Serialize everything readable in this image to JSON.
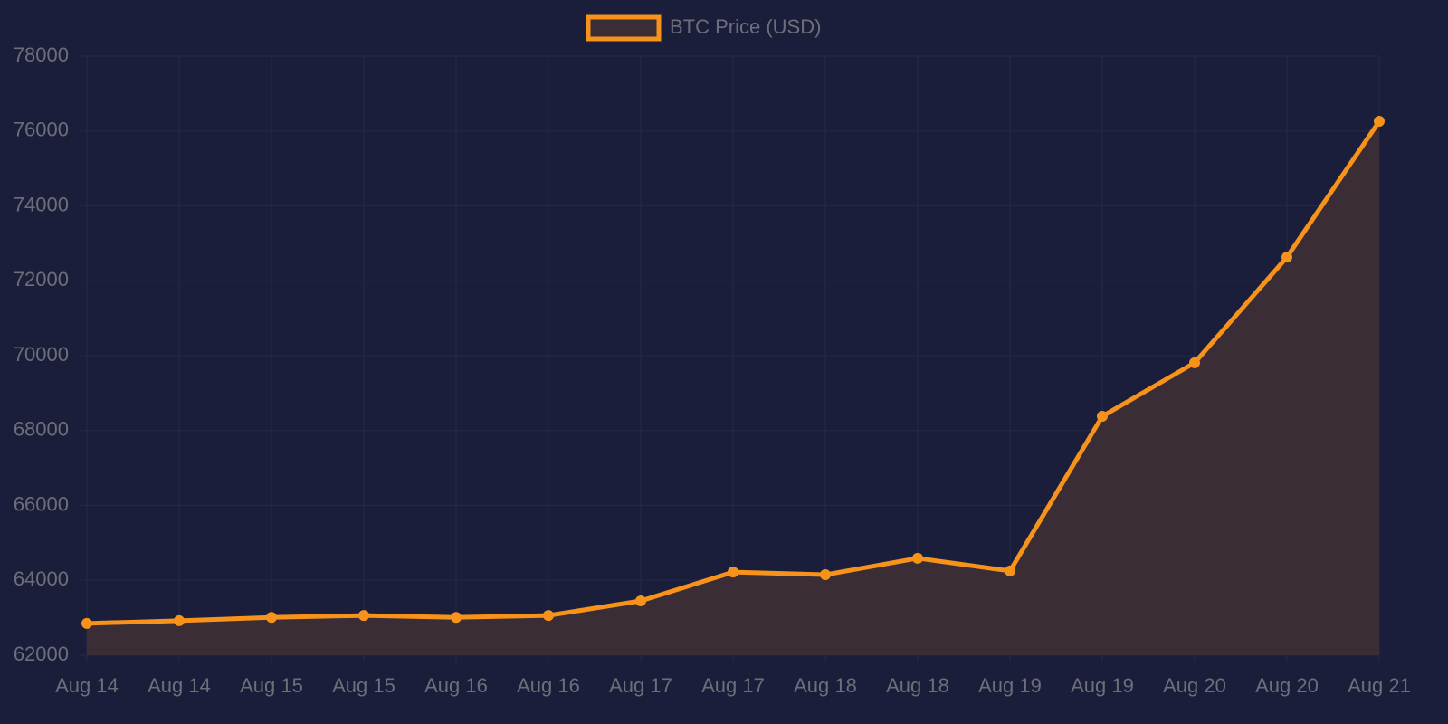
{
  "chart_data": {
    "type": "line",
    "categories": [
      "Aug 14",
      "Aug 14",
      "Aug 15",
      "Aug 15",
      "Aug 16",
      "Aug 16",
      "Aug 17",
      "Aug 17",
      "Aug 18",
      "Aug 18",
      "Aug 19",
      "Aug 19",
      "Aug 20",
      "Aug 20",
      "Aug 21"
    ],
    "series": [
      {
        "name": "BTC Price (USD)",
        "color": "#f7931a",
        "fill_color": "#3a2d35",
        "values": [
          62850,
          62920,
          63010,
          63060,
          63010,
          63060,
          63450,
          64220,
          64150,
          64590,
          64250,
          68380,
          69810,
          72630,
          76260
        ]
      }
    ],
    "ylim": [
      62000,
      78000
    ],
    "yticks": [
      62000,
      64000,
      66000,
      68000,
      70000,
      72000,
      74000,
      76000,
      78000
    ],
    "grid": true,
    "fill": true,
    "legend": "top"
  }
}
